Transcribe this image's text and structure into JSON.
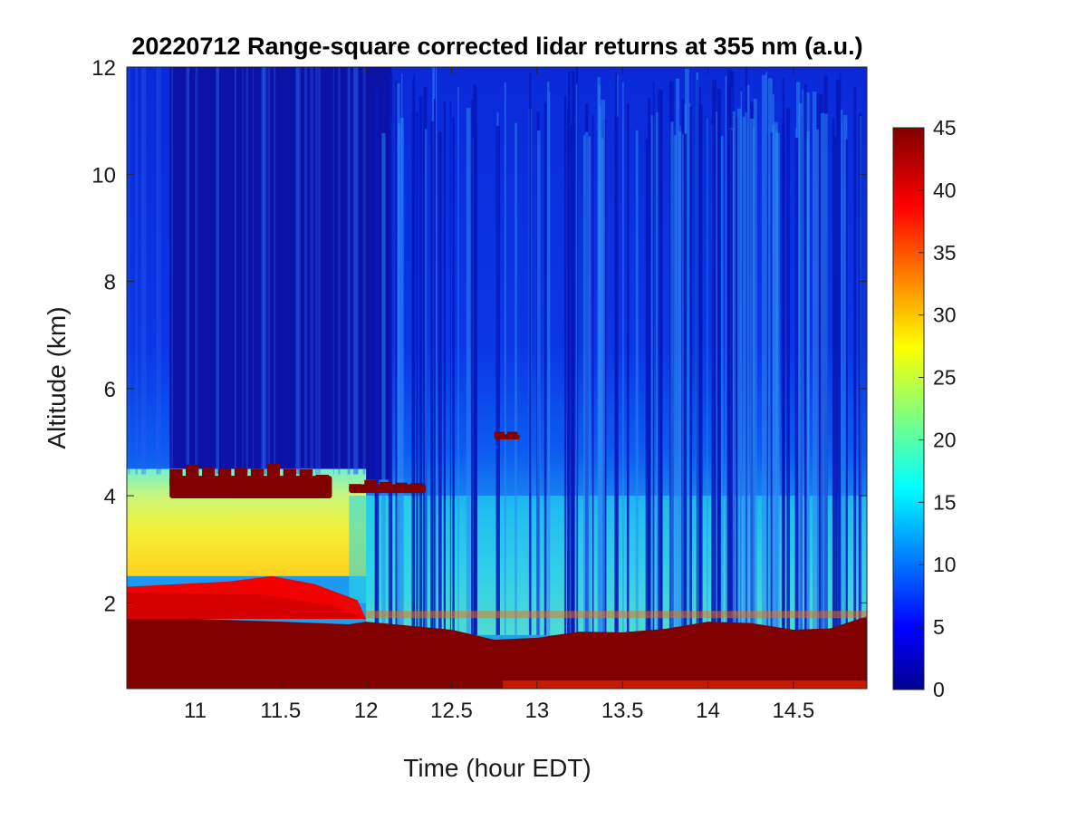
{
  "chart_data": {
    "type": "heatmap",
    "title": "20220712  Range-square corrected lidar returns at 355 nm (a.u.)",
    "xlabel": "Time (hour EDT)",
    "ylabel": "Altitude (km)",
    "xlim": [
      10.6,
      14.93
    ],
    "ylim": [
      0.4,
      12
    ],
    "xticks": [
      11,
      11.5,
      12,
      12.5,
      13,
      13.5,
      14,
      14.5
    ],
    "xtick_labels": [
      "11",
      "11.5",
      "12",
      "12.5",
      "13",
      "13.5",
      "14",
      "14.5"
    ],
    "yticks": [
      2,
      4,
      6,
      8,
      10,
      12
    ],
    "ytick_labels": [
      "2",
      "4",
      "6",
      "8",
      "10",
      "12"
    ],
    "colorbar": {
      "colormap": "jet",
      "range": [
        0,
        45
      ],
      "ticks": [
        0,
        5,
        10,
        15,
        20,
        25,
        30,
        35,
        40,
        45
      ],
      "tick_labels": [
        "0",
        "5",
        "10",
        "15",
        "20",
        "25",
        "30",
        "35",
        "40",
        "45"
      ]
    },
    "grid": false,
    "features": [
      {
        "kind": "boundary_layer_top",
        "x": [
          10.6,
          11.0,
          11.5,
          11.9,
          12.0,
          12.5,
          13.0,
          13.5,
          14.0,
          14.5,
          14.93
        ],
        "y": [
          1.7,
          1.7,
          1.65,
          1.6,
          1.65,
          1.5,
          1.35,
          1.45,
          1.65,
          1.5,
          1.75
        ],
        "value": 45
      },
      {
        "kind": "residual_layer",
        "x_range": [
          10.6,
          12.0
        ],
        "y_range": [
          1.7,
          2.5
        ],
        "value": 40
      },
      {
        "kind": "aerosol_layer",
        "x_range": [
          10.6,
          12.0
        ],
        "y_range": [
          2.5,
          4.5
        ],
        "value": 27
      },
      {
        "kind": "cloud",
        "x_range": [
          10.85,
          11.8
        ],
        "y_range": [
          3.95,
          4.6
        ],
        "value": 45
      },
      {
        "kind": "cloud",
        "x_range": [
          11.9,
          12.35
        ],
        "y_range": [
          4.05,
          4.3
        ],
        "value": 45
      },
      {
        "kind": "cloud",
        "x_range": [
          12.75,
          12.9
        ],
        "y_range": [
          5.05,
          5.2
        ],
        "value": 45
      }
    ]
  }
}
